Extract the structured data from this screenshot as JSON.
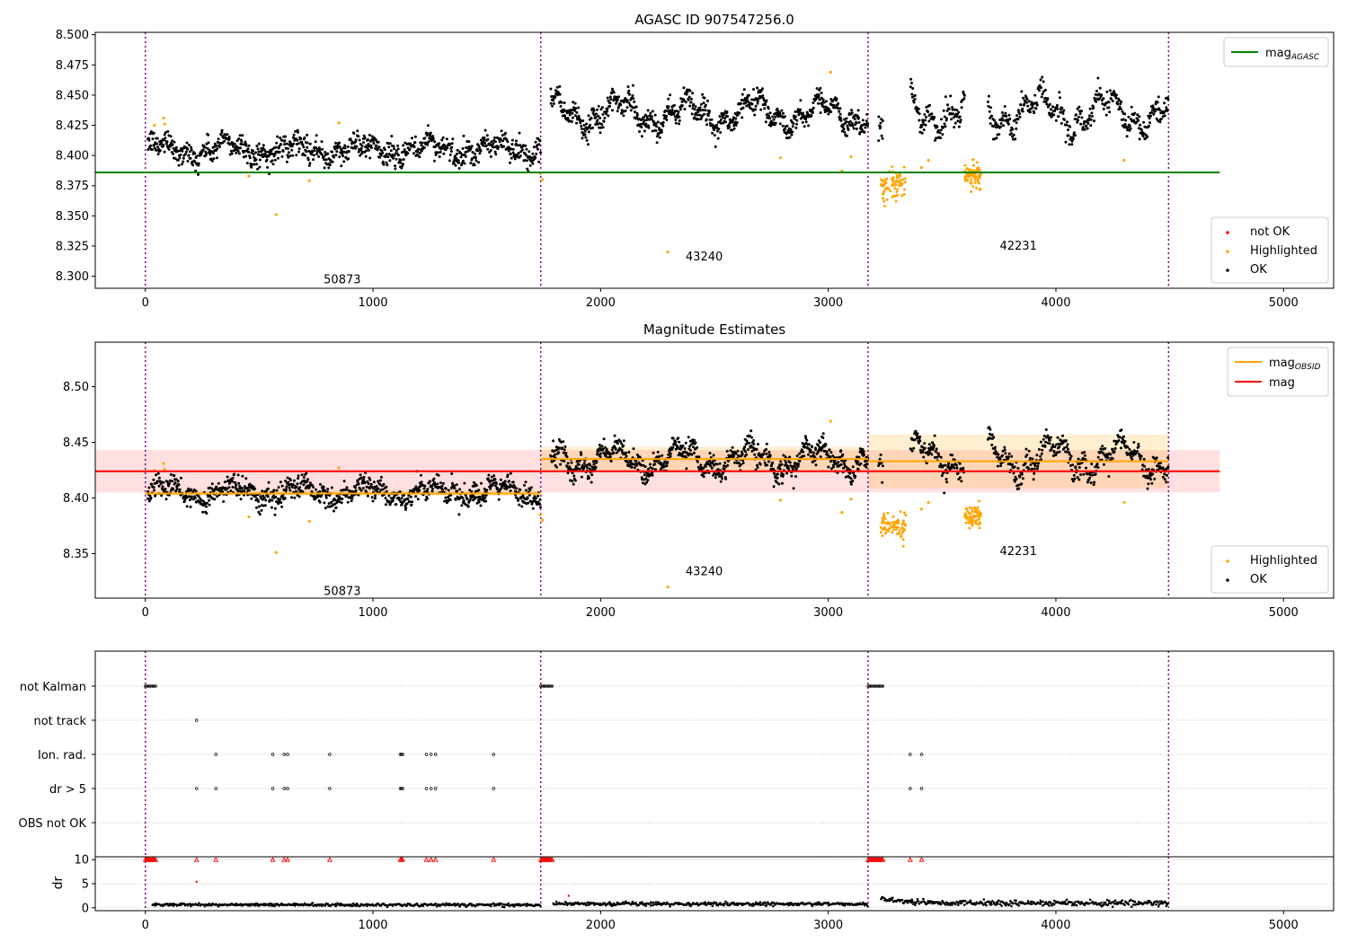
{
  "figure": {
    "background": "#ffffff"
  },
  "chart_data": [
    {
      "id": "p1",
      "type": "scatter",
      "title": "AGASC ID 907547256.0",
      "xlim": [
        -220,
        5220
      ],
      "ylim": [
        8.29,
        8.502
      ],
      "xticks": [
        0,
        1000,
        2000,
        3000,
        4000,
        5000
      ],
      "xtick_labels": [
        "0",
        "1000",
        "2000",
        "3000",
        "4000",
        "5000"
      ],
      "yticks": [
        8.3,
        8.325,
        8.35,
        8.375,
        8.4,
        8.425,
        8.45,
        8.475,
        8.5
      ],
      "ytick_labels": [
        "8.300",
        "8.325",
        "8.350",
        "8.375",
        "8.400",
        "8.425",
        "8.450",
        "8.475",
        "8.500"
      ],
      "obsid_boundaries": [
        0,
        1737,
        3175,
        4495
      ],
      "obsid_labels": [
        {
          "text": "50873",
          "x": 865,
          "y": 8.297
        },
        {
          "text": "43240",
          "x": 2455,
          "y": 8.316
        },
        {
          "text": "42231",
          "x": 3835,
          "y": 8.325
        }
      ],
      "hlines": [
        {
          "name": "mag_AGASC",
          "y": 8.386,
          "x": [
            -220,
            4720
          ],
          "color": "#008000"
        }
      ],
      "legend_lines": [
        {
          "label": "mag",
          "sub": "AGASC",
          "color": "#008000"
        }
      ],
      "legend_points": [
        {
          "label": "not OK",
          "color": "#ff0000"
        },
        {
          "label": "Highlighted",
          "color": "#ffa500"
        },
        {
          "label": "OK",
          "color": "#000000"
        }
      ],
      "segments": [
        {
          "x": [
            10,
            1737
          ],
          "mean": 8.405,
          "amp": 0.006,
          "noise": 0.006,
          "n": 900
        },
        {
          "x": [
            1780,
            3175
          ],
          "mean": 8.435,
          "amp": 0.01,
          "noise": 0.006,
          "n": 780
        },
        {
          "x": [
            3175,
            4495
          ],
          "mean": 8.436,
          "amp": 0.012,
          "noise": 0.006,
          "n": 620
        }
      ],
      "gaps": [
        [
          3175,
          3220
        ],
        [
          3240,
          3360
        ],
        [
          3600,
          3700
        ]
      ],
      "highlight_clusters": [
        {
          "x": [
            3230,
            3340
          ],
          "mean": 8.376,
          "noise": 0.006,
          "n": 70
        },
        {
          "x": [
            3600,
            3670
          ],
          "mean": 8.384,
          "noise": 0.005,
          "n": 70
        }
      ],
      "highlight_points": [
        [
          40,
          8.425
        ],
        [
          80,
          8.431
        ],
        [
          85,
          8.426
        ],
        [
          455,
          8.383
        ],
        [
          575,
          8.351
        ],
        [
          720,
          8.379
        ],
        [
          850,
          8.427
        ],
        [
          1745,
          8.38
        ],
        [
          1735,
          8.385
        ],
        [
          2295,
          8.32
        ],
        [
          2790,
          8.398
        ],
        [
          3010,
          8.469
        ],
        [
          3060,
          8.387
        ],
        [
          3100,
          8.399
        ],
        [
          3410,
          8.39
        ],
        [
          3440,
          8.396
        ],
        [
          4300,
          8.396
        ]
      ],
      "notok_points": []
    },
    {
      "id": "p2",
      "type": "scatter",
      "title": "Magnitude Estimates",
      "xlim": [
        -220,
        5220
      ],
      "ylim": [
        8.31,
        8.54
      ],
      "xticks": [
        0,
        1000,
        2000,
        3000,
        4000,
        5000
      ],
      "xtick_labels": [
        "0",
        "1000",
        "2000",
        "3000",
        "4000",
        "5000"
      ],
      "yticks": [
        8.35,
        8.4,
        8.45,
        8.5
      ],
      "ytick_labels": [
        "8.35",
        "8.40",
        "8.45",
        "8.50"
      ],
      "obsid_boundaries": [
        0,
        1737,
        3175,
        4495
      ],
      "obsid_labels": [
        {
          "text": "50873",
          "x": 865,
          "y": 8.316
        },
        {
          "text": "43240",
          "x": 2455,
          "y": 8.334
        },
        {
          "text": "42231",
          "x": 3835,
          "y": 8.352
        }
      ],
      "bands": [
        {
          "x": [
            -220,
            4720
          ],
          "y": [
            8.405,
            8.443
          ],
          "color": "#ff0000",
          "opacity": 0.12
        },
        {
          "x": [
            0,
            1737
          ],
          "y": [
            8.402,
            8.407
          ],
          "color": "#ffa500",
          "opacity": 0.25
        },
        {
          "x": [
            1737,
            3175
          ],
          "y": [
            8.424,
            8.446
          ],
          "color": "#ffa500",
          "opacity": 0.18
        },
        {
          "x": [
            3175,
            4495
          ],
          "y": [
            8.409,
            8.457
          ],
          "color": "#ffa500",
          "opacity": 0.18
        }
      ],
      "hlines": [
        {
          "name": "mag",
          "y": 8.424,
          "x": [
            -220,
            4720
          ],
          "color": "#ff0000"
        },
        {
          "name": "mag_OBSID_1",
          "y": 8.404,
          "x": [
            0,
            1737
          ],
          "color": "#ffa500"
        },
        {
          "name": "mag_OBSID_2",
          "y": 8.435,
          "x": [
            1737,
            3175
          ],
          "color": "#ffa500"
        },
        {
          "name": "mag_OBSID_3",
          "y": 8.433,
          "x": [
            3175,
            4495
          ],
          "color": "#ffa500"
        }
      ],
      "legend_lines": [
        {
          "label": "mag",
          "sub": "OBSID",
          "color": "#ffa500"
        },
        {
          "label": "mag",
          "sub": "",
          "color": "#ff0000"
        }
      ],
      "legend_points": [
        {
          "label": "Highlighted",
          "color": "#ffa500"
        },
        {
          "label": "OK",
          "color": "#000000"
        }
      ],
      "segments": [
        {
          "x": [
            10,
            1737
          ],
          "mean": 8.405,
          "amp": 0.006,
          "noise": 0.006,
          "n": 900
        },
        {
          "x": [
            1780,
            3175
          ],
          "mean": 8.435,
          "amp": 0.01,
          "noise": 0.006,
          "n": 780
        },
        {
          "x": [
            3175,
            4495
          ],
          "mean": 8.436,
          "amp": 0.012,
          "noise": 0.006,
          "n": 620
        }
      ],
      "gaps": [
        [
          3175,
          3220
        ],
        [
          3240,
          3360
        ],
        [
          3600,
          3700
        ]
      ],
      "highlight_clusters": [
        {
          "x": [
            3230,
            3340
          ],
          "mean": 8.376,
          "noise": 0.006,
          "n": 70
        },
        {
          "x": [
            3600,
            3670
          ],
          "mean": 8.384,
          "noise": 0.005,
          "n": 70
        }
      ],
      "highlight_points": [
        [
          40,
          8.425
        ],
        [
          80,
          8.431
        ],
        [
          85,
          8.426
        ],
        [
          455,
          8.383
        ],
        [
          575,
          8.351
        ],
        [
          720,
          8.379
        ],
        [
          850,
          8.427
        ],
        [
          1745,
          8.38
        ],
        [
          1735,
          8.385
        ],
        [
          2295,
          8.32
        ],
        [
          2790,
          8.398
        ],
        [
          3010,
          8.469
        ],
        [
          3060,
          8.387
        ],
        [
          3100,
          8.399
        ],
        [
          3410,
          8.39
        ],
        [
          3440,
          8.396
        ],
        [
          4300,
          8.396
        ]
      ],
      "notok_points": []
    },
    {
      "id": "p3",
      "type": "scatter",
      "title": "",
      "xlim": [
        -220,
        5220
      ],
      "categories": [
        "not Kalman",
        "not track",
        "Ion. rad.",
        "dr > 5",
        "OBS not OK"
      ],
      "obsid_boundaries": [
        0,
        1737,
        3175,
        4495
      ],
      "flags": {
        "not Kalman": [
          [
            0,
            45
          ],
          [
            1737,
            1790
          ],
          [
            3175,
            3240
          ]
        ],
        "not track": [
          225
        ],
        "Ion. rad.": [
          310,
          560,
          610,
          625,
          810,
          1120,
          1125,
          1130,
          1235,
          1255,
          1275,
          1530,
          3360,
          3410
        ],
        "dr > 5": [
          225,
          310,
          560,
          610,
          625,
          810,
          1120,
          1125,
          1130,
          1235,
          1255,
          1275,
          1530,
          3360,
          3410
        ],
        "OBS not OK": []
      }
    },
    {
      "id": "p4",
      "type": "scatter",
      "xlabel": "",
      "ylabel": "dr",
      "xlim": [
        -220,
        5220
      ],
      "ylim": [
        -0.6,
        10.6
      ],
      "xticks": [
        0,
        1000,
        2000,
        3000,
        4000,
        5000
      ],
      "xtick_labels": [
        "0",
        "1000",
        "2000",
        "3000",
        "4000",
        "5000"
      ],
      "yticks": [
        0,
        5,
        10
      ],
      "ytick_labels": [
        "0",
        "5",
        "10"
      ],
      "obsid_boundaries": [
        0,
        1737,
        3175,
        4495
      ],
      "capped_markers_y": 10,
      "capped_runs": [
        [
          0,
          45
        ],
        [
          1737,
          1790
        ],
        [
          3175,
          3240
        ]
      ],
      "capped_points": [
        225,
        310,
        560,
        610,
        625,
        810,
        1120,
        1125,
        1130,
        1235,
        1255,
        1275,
        1530,
        3360,
        3410
      ],
      "extra_points": [
        [
          225,
          5.4
        ],
        [
          1860,
          2.5
        ]
      ],
      "segments": [
        {
          "x": [
            30,
            1737
          ],
          "mean": 0.6,
          "noise": 0.25,
          "n": 420
        },
        {
          "x": [
            1790,
            3175
          ],
          "mean": 0.8,
          "noise": 0.3,
          "n": 360
        },
        {
          "x": [
            3230,
            4495
          ],
          "mean": 1.0,
          "noise": 0.45,
          "n": 330
        }
      ]
    }
  ]
}
